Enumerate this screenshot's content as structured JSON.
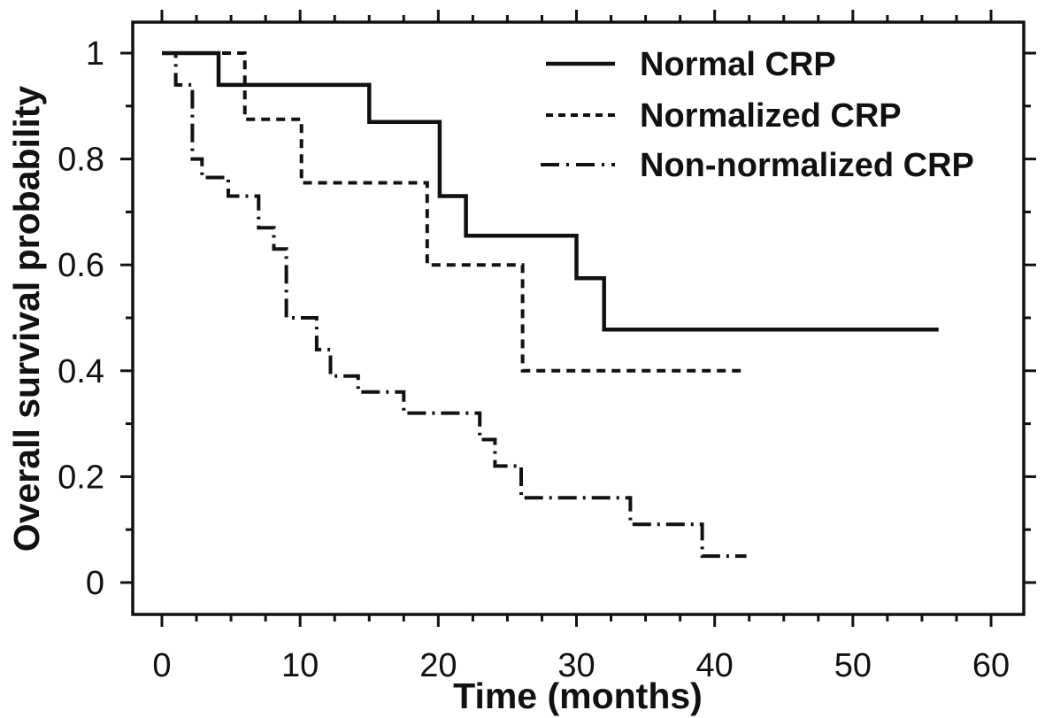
{
  "chart_data": {
    "type": "line",
    "subtype": "kaplan-meier-step-curves",
    "title": "",
    "xlabel": "Time (months)",
    "ylabel": "Overall survival probability",
    "xlim": [
      0,
      60
    ],
    "ylim": [
      0,
      1
    ],
    "grid": false,
    "legend_position": "top-right",
    "line_color": "#111111",
    "background_color": "#ffffff",
    "x_major_ticks": [
      0,
      10,
      20,
      30,
      40,
      50,
      60
    ],
    "x_tick_labels": [
      "0",
      "10",
      "20",
      "30",
      "40",
      "50",
      "60"
    ],
    "x_minor_tick_step": 2.5,
    "y_major_ticks": [
      0,
      0.2,
      0.4,
      0.6,
      0.8,
      1
    ],
    "y_tick_labels": [
      "0",
      "0.2",
      "0.4",
      "0.6",
      "0.8",
      "1"
    ],
    "y_minor_tick_step": 0.1,
    "series": [
      {
        "name": "Normal CRP",
        "line_style": "solid",
        "points": [
          [
            0,
            1
          ],
          [
            4.1,
            1
          ],
          [
            4.1,
            0.94
          ],
          [
            15,
            0.94
          ],
          [
            15,
            0.87
          ],
          [
            20.1,
            0.87
          ],
          [
            20.1,
            0.73
          ],
          [
            22,
            0.73
          ],
          [
            22,
            0.655
          ],
          [
            30,
            0.655
          ],
          [
            30,
            0.575
          ],
          [
            32,
            0.575
          ],
          [
            32,
            0.478
          ],
          [
            56.2,
            0.478
          ]
        ]
      },
      {
        "name": "Normalized CRP",
        "line_style": "dashed",
        "points": [
          [
            0,
            1
          ],
          [
            6,
            1
          ],
          [
            6,
            0.875
          ],
          [
            10.1,
            0.875
          ],
          [
            10.1,
            0.755
          ],
          [
            19.2,
            0.755
          ],
          [
            19.2,
            0.6
          ],
          [
            26.1,
            0.6
          ],
          [
            26.1,
            0.4
          ],
          [
            42.1,
            0.4
          ]
        ]
      },
      {
        "name": "Non-normalized CRP",
        "line_style": "dash-dot",
        "points": [
          [
            0,
            1
          ],
          [
            1,
            1
          ],
          [
            1,
            0.94
          ],
          [
            2.2,
            0.94
          ],
          [
            2.2,
            0.8
          ],
          [
            2.9,
            0.8
          ],
          [
            2.9,
            0.765
          ],
          [
            4.8,
            0.765
          ],
          [
            4.8,
            0.73
          ],
          [
            7,
            0.73
          ],
          [
            7,
            0.67
          ],
          [
            8.1,
            0.67
          ],
          [
            8.1,
            0.63
          ],
          [
            9,
            0.63
          ],
          [
            9,
            0.5
          ],
          [
            11.2,
            0.5
          ],
          [
            11.2,
            0.44
          ],
          [
            12.2,
            0.44
          ],
          [
            12.2,
            0.39
          ],
          [
            14.2,
            0.39
          ],
          [
            14.2,
            0.36
          ],
          [
            17.5,
            0.36
          ],
          [
            17.5,
            0.32
          ],
          [
            23,
            0.32
          ],
          [
            23,
            0.27
          ],
          [
            24.1,
            0.27
          ],
          [
            24.1,
            0.22
          ],
          [
            26,
            0.22
          ],
          [
            26,
            0.16
          ],
          [
            33.9,
            0.16
          ],
          [
            33.9,
            0.11
          ],
          [
            39.1,
            0.11
          ],
          [
            39.1,
            0.05
          ],
          [
            42.3,
            0.05
          ]
        ]
      }
    ]
  }
}
